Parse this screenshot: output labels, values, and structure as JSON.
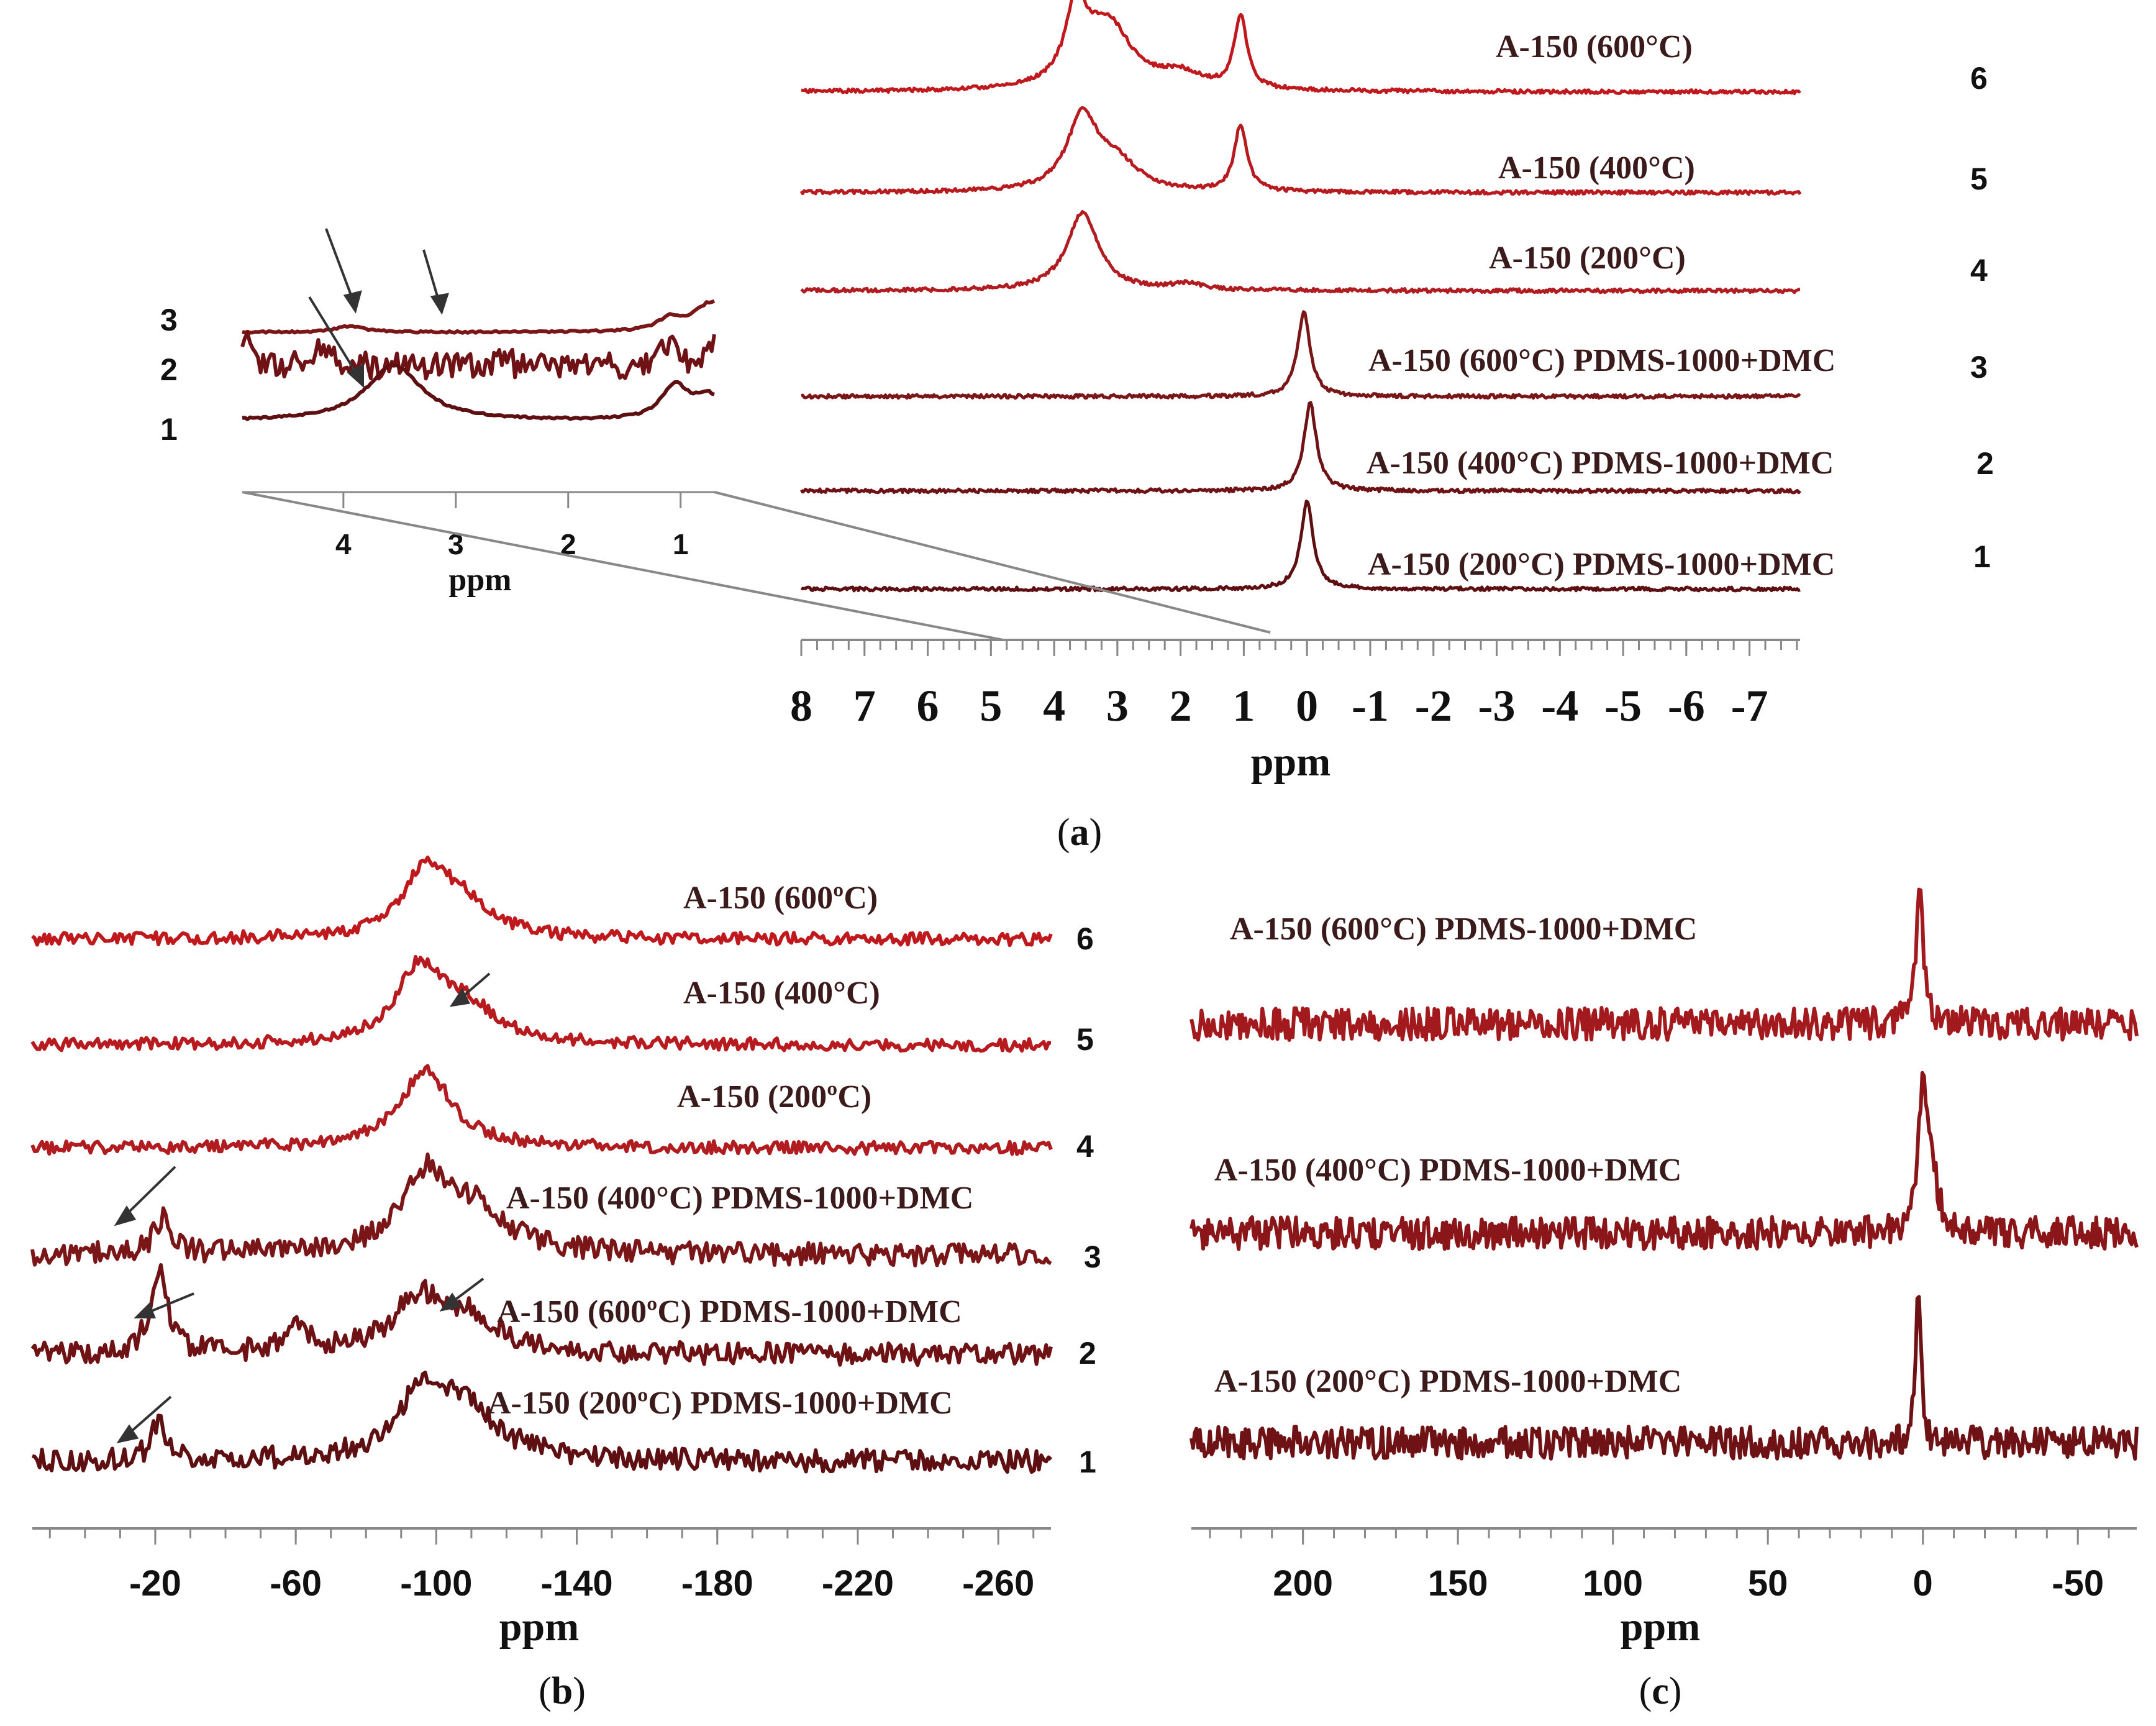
{
  "chart_data": [
    {
      "id": "a",
      "type": "line",
      "panel_label": "a",
      "xlabel": "ppm",
      "x_range": [
        8,
        -7.8
      ],
      "x_ticks": [
        8,
        7,
        6,
        5,
        4,
        3,
        2,
        1,
        0,
        -1,
        -2,
        -3,
        -4,
        -5,
        -6,
        -7
      ],
      "x_tick_labels": [
        "8",
        "7",
        "6",
        "5",
        "4",
        "3",
        "2",
        "1",
        "0",
        "-1",
        "-2",
        "-3",
        "-4",
        "-5",
        "-6",
        "-7"
      ],
      "series": [
        {
          "name": "A-150 (600°C)",
          "number": "6",
          "color": "#c0191d",
          "peaks": [
            {
              "ppm": 3.65,
              "height": 1.0,
              "width": 0.2
            },
            {
              "ppm": 3.15,
              "height": 0.9,
              "width": 0.45
            },
            {
              "ppm": 2.0,
              "height": 0.2,
              "width": 0.4
            },
            {
              "ppm": 1.05,
              "height": 1.0,
              "width": 0.12
            }
          ]
        },
        {
          "name": "A-150 (400°C)",
          "number": "5",
          "color": "#b81b1f",
          "peaks": [
            {
              "ppm": 3.55,
              "height": 1.0,
              "width": 0.3
            },
            {
              "ppm": 3.0,
              "height": 0.35,
              "width": 0.4
            },
            {
              "ppm": 1.05,
              "height": 0.9,
              "width": 0.12
            }
          ]
        },
        {
          "name": "A-150 (200°C)",
          "number": "4",
          "color": "#b01c20",
          "peaks": [
            {
              "ppm": 3.55,
              "height": 1.0,
              "width": 0.3
            },
            {
              "ppm": 1.9,
              "height": 0.08,
              "width": 0.3
            }
          ]
        },
        {
          "name": "A-150 (600°C) PDMS-1000+DMC",
          "number": "3",
          "color": "#7a1518",
          "peaks": [
            {
              "ppm": 0.05,
              "height": 1.0,
              "width": 0.12
            }
          ]
        },
        {
          "name": "A-150 (400°C) PDMS-1000+DMC",
          "number": "2",
          "color": "#6e1215",
          "peaks": [
            {
              "ppm": -0.05,
              "height": 1.0,
              "width": 0.12
            }
          ]
        },
        {
          "name": "A-150 (200°C) PDMS-1000+DMC",
          "number": "1",
          "color": "#5e0f12",
          "peaks": [
            {
              "ppm": 0.0,
              "height": 1.0,
              "width": 0.12
            }
          ]
        }
      ],
      "inset": {
        "xlabel": "ppm",
        "x_range": [
          4.9,
          0.7
        ],
        "x_ticks": [
          4,
          3,
          2,
          1
        ],
        "x_tick_labels": [
          "4",
          "3",
          "2",
          "1"
        ],
        "series": [
          {
            "number": "3",
            "color": "#7a1518"
          },
          {
            "number": "2",
            "color": "#6e1215"
          },
          {
            "number": "1",
            "color": "#5e0f12"
          }
        ]
      }
    },
    {
      "id": "b",
      "type": "line",
      "panel_label": "b",
      "xlabel": "ppm",
      "x_range": [
        15,
        -275
      ],
      "x_ticks": [
        -20,
        -60,
        -100,
        -140,
        -180,
        -220,
        -260
      ],
      "x_tick_labels": [
        "-20",
        "-60",
        "-100",
        "-140",
        "-180",
        "-220",
        "-260"
      ],
      "series": [
        {
          "name": "A-150 (600ºC)",
          "number": "6",
          "color": "#c0191d",
          "peaks": [
            {
              "ppm": -97,
              "height": 1.0,
              "width": 8
            },
            {
              "ppm": -108,
              "height": 0.45,
              "width": 10
            }
          ]
        },
        {
          "name": "A-150 (400°C)",
          "number": "5",
          "color": "#b81b1f",
          "peaks": [
            {
              "ppm": -95,
              "height": 1.0,
              "width": 8
            },
            {
              "ppm": -108,
              "height": 0.5,
              "width": 10
            }
          ]
        },
        {
          "name": "A-150 (200ºC)",
          "number": "4",
          "color": "#b01c20",
          "peaks": [
            {
              "ppm": -97,
              "height": 1.0,
              "width": 9
            }
          ]
        },
        {
          "name": "A-150 (400°C) PDMS-1000+DMC",
          "number": "3",
          "color": "#7a1518",
          "peaks": [
            {
              "ppm": -22,
              "height": 0.45,
              "width": 3
            },
            {
              "ppm": -97,
              "height": 1.0,
              "width": 9
            },
            {
              "ppm": -112,
              "height": 0.5,
              "width": 10
            }
          ]
        },
        {
          "name": "A-150 (600ºC) PDMS-1000+DMC",
          "number": "2",
          "color": "#6e1215",
          "peaks": [
            {
              "ppm": -21,
              "height": 1.0,
              "width": 3
            },
            {
              "ppm": -60,
              "height": 0.3,
              "width": 4
            },
            {
              "ppm": -95,
              "height": 0.65,
              "width": 9
            },
            {
              "ppm": -110,
              "height": 0.4,
              "width": 10
            }
          ]
        },
        {
          "name": "A-150 (200ºC) PDMS-1000+DMC",
          "number": "1",
          "color": "#5e0f12",
          "peaks": [
            {
              "ppm": -21,
              "height": 0.55,
              "width": 2.5
            },
            {
              "ppm": -97,
              "height": 1.0,
              "width": 9
            },
            {
              "ppm": -110,
              "height": 0.55,
              "width": 10
            }
          ]
        }
      ]
    },
    {
      "id": "c",
      "type": "line",
      "panel_label": "c",
      "xlabel": "ppm",
      "x_range": [
        236,
        -69
      ],
      "x_ticks": [
        200,
        150,
        100,
        50,
        0,
        -50
      ],
      "x_tick_labels": [
        "200",
        "150",
        "100",
        "50",
        "0",
        "-50"
      ],
      "series": [
        {
          "name": "A-150 (600°C) PDMS-1000+DMC",
          "color": "#a31a1e",
          "peaks": [
            {
              "ppm": 1,
              "height": 1.0,
              "width": 1.2
            }
          ]
        },
        {
          "name": "A-150 (400°C) PDMS-1000+DMC",
          "color": "#8a1619",
          "peaks": [
            {
              "ppm": 0,
              "height": 1.0,
              "width": 1.5
            },
            {
              "ppm": -3,
              "height": 0.3,
              "width": 3
            }
          ]
        },
        {
          "name": "A-150 (200°C) PDMS-1000+DMC",
          "color": "#6e1215",
          "peaks": [
            {
              "ppm": 1.5,
              "height": 1.0,
              "width": 1.0
            }
          ]
        }
      ]
    }
  ]
}
